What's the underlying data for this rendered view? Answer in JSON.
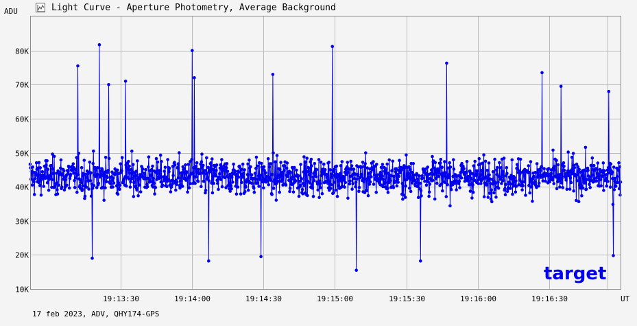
{
  "header": {
    "title": "Light Curve - Aperture Photometry, Average Background",
    "icon": "chart-icon"
  },
  "footer": {
    "text": "17 feb 2023, ADV, QHY174-GPS"
  },
  "colors": {
    "series": "#0000ee",
    "grid": "#bbbbbb",
    "background": "#f4f4f4"
  },
  "chart_data": {
    "type": "line",
    "ylabel": "ADU",
    "xlabel": "UT",
    "ylim": [
      10000,
      90000
    ],
    "y_ticks": [
      "10K",
      "20K",
      "30K",
      "40K",
      "50K",
      "60K",
      "70K",
      "80K"
    ],
    "x_range": [
      "19:12:52",
      "19:17:00"
    ],
    "x_ticks": [
      "19:13:30",
      "19:14:00",
      "19:14:30",
      "19:15:00",
      "19:15:30",
      "19:16:00",
      "19:16:30"
    ],
    "grid": true,
    "series_label": "target",
    "series": [
      {
        "name": "target",
        "summary": {
          "mean": 43000,
          "min": 15500,
          "max": 81700
        },
        "peaks": [
          {
            "t": "19:13:12",
            "v": 75500
          },
          {
            "t": "19:13:21",
            "v": 81700
          },
          {
            "t": "19:13:25",
            "v": 70000
          },
          {
            "t": "19:13:32",
            "v": 71000
          },
          {
            "t": "19:14:00",
            "v": 80000
          },
          {
            "t": "19:14:01",
            "v": 72000
          },
          {
            "t": "19:14:34",
            "v": 73000
          },
          {
            "t": "19:14:59",
            "v": 81200
          },
          {
            "t": "19:15:47",
            "v": 76300
          },
          {
            "t": "19:16:27",
            "v": 73500
          },
          {
            "t": "19:16:35",
            "v": 69500
          },
          {
            "t": "19:16:55",
            "v": 68000
          }
        ],
        "dips": [
          {
            "t": "19:13:18",
            "v": 19000
          },
          {
            "t": "19:14:07",
            "v": 18200
          },
          {
            "t": "19:14:29",
            "v": 19500
          },
          {
            "t": "19:15:09",
            "v": 15500
          },
          {
            "t": "19:15:36",
            "v": 18200
          },
          {
            "t": "19:16:57",
            "v": 19800
          }
        ]
      }
    ]
  }
}
